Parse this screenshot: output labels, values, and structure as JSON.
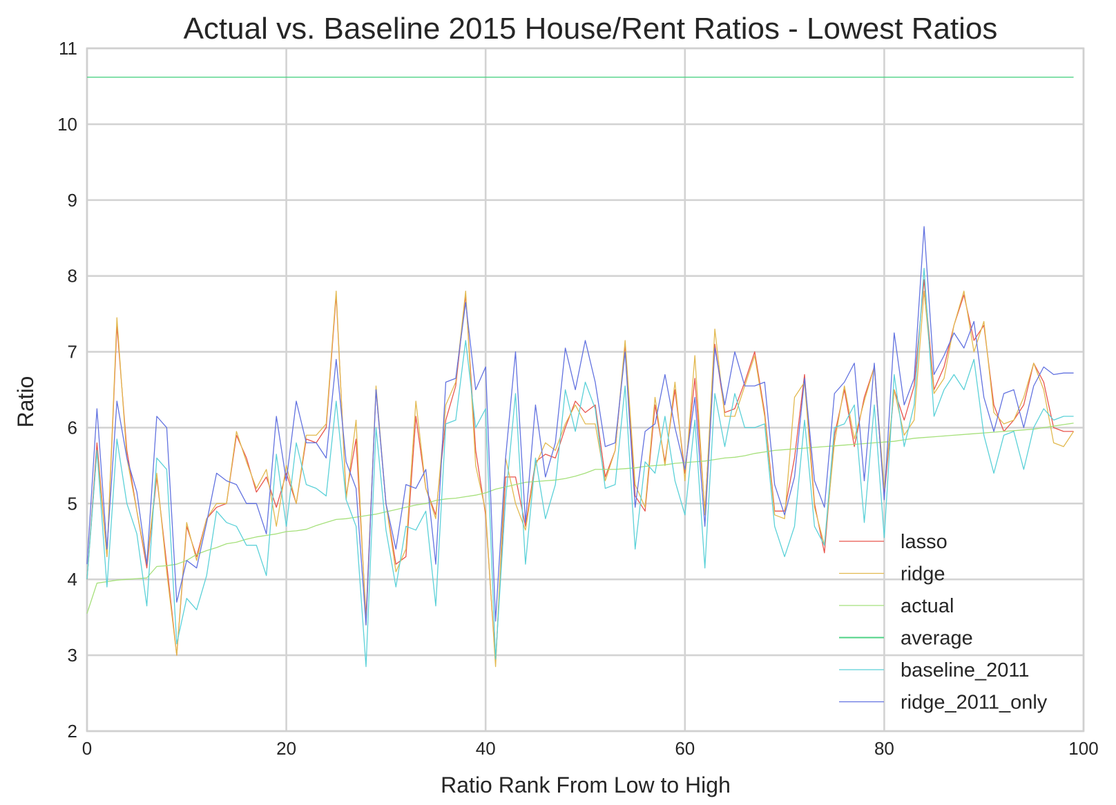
{
  "chart_data": {
    "type": "line",
    "title": "Actual vs. Baseline 2015 House/Rent Ratios - Lowest Ratios",
    "xlabel": "Ratio Rank From Low to High",
    "ylabel": "Ratio",
    "xlim": [
      0,
      100
    ],
    "ylim": [
      2,
      11
    ],
    "xticks": [
      "0",
      "20",
      "40",
      "60",
      "80",
      "100"
    ],
    "yticks": [
      "2",
      "3",
      "4",
      "5",
      "6",
      "7",
      "8",
      "9",
      "10",
      "11"
    ],
    "grid": true,
    "legend_position": "lower-right",
    "series": [
      {
        "name": "lasso",
        "color": "#e8544c",
        "x": [
          0,
          1,
          2,
          3,
          4,
          5,
          6,
          7,
          8,
          9,
          10,
          11,
          12,
          13,
          14,
          15,
          16,
          17,
          18,
          19,
          20,
          21,
          22,
          23,
          24,
          25,
          26,
          27,
          28,
          29,
          30,
          31,
          32,
          33,
          34,
          35,
          36,
          37,
          38,
          39,
          40,
          41,
          42,
          43,
          44,
          45,
          46,
          47,
          48,
          49,
          50,
          51,
          52,
          53,
          54,
          55,
          56,
          57,
          58,
          59,
          60,
          61,
          62,
          63,
          64,
          65,
          66,
          67,
          68,
          69,
          70,
          71,
          72,
          73,
          74,
          75,
          76,
          77,
          78,
          79,
          80,
          81,
          82,
          83,
          84,
          85,
          86,
          87,
          88,
          89,
          90,
          91,
          92,
          93,
          94,
          95,
          96,
          97,
          98,
          99
        ],
        "values": [
          4.0,
          5.8,
          4.3,
          7.35,
          5.7,
          4.9,
          4.15,
          5.35,
          4.2,
          3.0,
          4.7,
          4.3,
          4.8,
          4.95,
          5.0,
          5.9,
          5.6,
          5.15,
          5.35,
          4.95,
          5.4,
          5.0,
          5.85,
          5.8,
          6.0,
          7.75,
          5.1,
          5.85,
          3.5,
          6.5,
          5.0,
          4.2,
          4.3,
          6.15,
          5.2,
          4.85,
          6.1,
          6.55,
          7.75,
          5.7,
          4.85,
          2.9,
          5.35,
          5.35,
          4.7,
          5.55,
          5.65,
          5.6,
          6.0,
          6.35,
          6.2,
          6.3,
          5.35,
          5.7,
          7.1,
          5.1,
          4.9,
          6.3,
          5.55,
          6.5,
          5.4,
          6.65,
          4.9,
          7.1,
          6.2,
          6.25,
          6.6,
          7.0,
          6.2,
          4.9,
          4.9,
          5.6,
          6.7,
          5.0,
          4.35,
          5.9,
          6.5,
          5.75,
          6.4,
          6.8,
          5.1,
          6.5,
          6.1,
          6.55,
          7.95,
          6.5,
          6.8,
          7.35,
          7.75,
          7.15,
          7.35,
          6.3,
          5.95,
          6.1,
          6.3,
          6.85,
          6.6,
          6.0,
          5.95,
          5.95
        ]
      },
      {
        "name": "ridge",
        "color": "#e2b94f",
        "x": [
          0,
          1,
          2,
          3,
          4,
          5,
          6,
          7,
          8,
          9,
          10,
          11,
          12,
          13,
          14,
          15,
          16,
          17,
          18,
          19,
          20,
          21,
          22,
          23,
          24,
          25,
          26,
          27,
          28,
          29,
          30,
          31,
          32,
          33,
          34,
          35,
          36,
          37,
          38,
          39,
          40,
          41,
          42,
          43,
          44,
          45,
          46,
          47,
          48,
          49,
          50,
          51,
          52,
          53,
          54,
          55,
          56,
          57,
          58,
          59,
          60,
          61,
          62,
          63,
          64,
          65,
          66,
          67,
          68,
          69,
          70,
          71,
          72,
          73,
          74,
          75,
          76,
          77,
          78,
          79,
          80,
          81,
          82,
          83,
          84,
          85,
          86,
          87,
          88,
          89,
          90,
          91,
          92,
          93,
          94,
          95,
          96,
          97,
          98,
          99
        ],
        "values": [
          4.0,
          5.7,
          4.3,
          7.45,
          5.6,
          4.9,
          4.2,
          5.4,
          4.1,
          3.0,
          4.75,
          4.25,
          4.8,
          5.0,
          5.0,
          5.95,
          5.55,
          5.2,
          5.45,
          4.7,
          5.5,
          5.0,
          5.9,
          5.9,
          6.05,
          7.8,
          5.05,
          6.1,
          3.4,
          6.55,
          5.0,
          4.1,
          4.4,
          6.35,
          5.2,
          4.8,
          6.3,
          6.6,
          7.8,
          5.5,
          4.9,
          2.85,
          5.6,
          5.0,
          4.65,
          5.5,
          5.8,
          5.7,
          6.05,
          6.3,
          6.05,
          6.05,
          5.3,
          5.7,
          7.15,
          5.25,
          4.95,
          6.4,
          5.5,
          6.6,
          5.3,
          6.95,
          4.85,
          7.3,
          6.15,
          6.15,
          6.55,
          6.95,
          6.15,
          4.85,
          4.8,
          6.4,
          6.6,
          4.95,
          4.45,
          5.8,
          6.55,
          5.85,
          6.35,
          6.8,
          5.2,
          6.5,
          5.9,
          6.1,
          7.8,
          6.45,
          6.65,
          7.35,
          7.8,
          7.0,
          7.4,
          6.2,
          6.05,
          6.1,
          6.4,
          6.85,
          6.5,
          5.8,
          5.75,
          5.95
        ]
      },
      {
        "name": "actual",
        "color": "#a5e07a",
        "x": [
          0,
          1,
          2,
          3,
          4,
          5,
          6,
          7,
          8,
          9,
          10,
          11,
          12,
          13,
          14,
          15,
          16,
          17,
          18,
          19,
          20,
          21,
          22,
          23,
          24,
          25,
          26,
          27,
          28,
          29,
          30,
          31,
          32,
          33,
          34,
          35,
          36,
          37,
          38,
          39,
          40,
          41,
          42,
          43,
          44,
          45,
          46,
          47,
          48,
          49,
          50,
          51,
          52,
          53,
          54,
          55,
          56,
          57,
          58,
          59,
          60,
          61,
          62,
          63,
          64,
          65,
          66,
          67,
          68,
          69,
          70,
          71,
          72,
          73,
          74,
          75,
          76,
          77,
          78,
          79,
          80,
          81,
          82,
          83,
          84,
          85,
          86,
          87,
          88,
          89,
          90,
          91,
          92,
          93,
          94,
          95,
          96,
          97,
          98,
          99
        ],
        "values": [
          3.55,
          3.95,
          3.97,
          3.99,
          4.0,
          4.01,
          4.02,
          4.17,
          4.18,
          4.2,
          4.25,
          4.33,
          4.38,
          4.42,
          4.47,
          4.49,
          4.53,
          4.56,
          4.58,
          4.6,
          4.63,
          4.64,
          4.66,
          4.71,
          4.75,
          4.79,
          4.8,
          4.82,
          4.84,
          4.86,
          4.89,
          4.92,
          4.95,
          4.98,
          5.0,
          5.04,
          5.06,
          5.07,
          5.09,
          5.11,
          5.14,
          5.19,
          5.22,
          5.25,
          5.28,
          5.29,
          5.3,
          5.31,
          5.33,
          5.36,
          5.4,
          5.45,
          5.45,
          5.45,
          5.46,
          5.47,
          5.49,
          5.5,
          5.51,
          5.53,
          5.54,
          5.55,
          5.56,
          5.58,
          5.6,
          5.61,
          5.63,
          5.66,
          5.68,
          5.7,
          5.71,
          5.72,
          5.73,
          5.74,
          5.75,
          5.76,
          5.77,
          5.78,
          5.79,
          5.8,
          5.81,
          5.82,
          5.84,
          5.86,
          5.87,
          5.88,
          5.89,
          5.9,
          5.91,
          5.92,
          5.93,
          5.94,
          5.95,
          5.96,
          5.97,
          5.98,
          6.0,
          6.02,
          6.04,
          6.06
        ]
      },
      {
        "name": "average",
        "color": "#4ed284",
        "x": [
          0,
          99
        ],
        "values": [
          10.62,
          10.62
        ]
      },
      {
        "name": "baseline_2011",
        "color": "#5bd1d8",
        "x": [
          0,
          1,
          2,
          3,
          4,
          5,
          6,
          7,
          8,
          9,
          10,
          11,
          12,
          13,
          14,
          15,
          16,
          17,
          18,
          19,
          20,
          21,
          22,
          23,
          24,
          25,
          26,
          27,
          28,
          29,
          30,
          31,
          32,
          33,
          34,
          35,
          36,
          37,
          38,
          39,
          40,
          41,
          42,
          43,
          44,
          45,
          46,
          47,
          48,
          49,
          50,
          51,
          52,
          53,
          54,
          55,
          56,
          57,
          58,
          59,
          60,
          61,
          62,
          63,
          64,
          65,
          66,
          67,
          68,
          69,
          70,
          71,
          72,
          73,
          74,
          75,
          76,
          77,
          78,
          79,
          80,
          81,
          82,
          83,
          84,
          85,
          86,
          87,
          88,
          89,
          90,
          91,
          92,
          93,
          94,
          95,
          96,
          97,
          98,
          99
        ],
        "values": [
          4.0,
          5.7,
          3.9,
          5.85,
          5.0,
          4.6,
          3.65,
          5.6,
          5.45,
          3.15,
          3.75,
          3.6,
          4.05,
          4.9,
          4.75,
          4.7,
          4.45,
          4.45,
          4.05,
          5.65,
          4.7,
          5.8,
          5.25,
          5.2,
          5.1,
          6.35,
          5.05,
          4.7,
          2.85,
          6.0,
          4.65,
          3.9,
          4.7,
          4.65,
          4.9,
          3.65,
          6.05,
          6.1,
          7.15,
          6.0,
          6.25,
          2.95,
          5.05,
          6.45,
          4.2,
          5.6,
          4.8,
          5.25,
          6.5,
          5.95,
          6.6,
          6.25,
          5.2,
          5.25,
          6.55,
          4.4,
          5.55,
          5.4,
          6.15,
          5.3,
          4.85,
          6.1,
          4.15,
          6.45,
          5.75,
          6.45,
          6.0,
          6.0,
          6.05,
          4.7,
          4.3,
          4.7,
          6.1,
          4.7,
          4.45,
          6.0,
          6.05,
          6.3,
          4.75,
          6.3,
          4.55,
          6.7,
          5.75,
          6.3,
          8.1,
          6.15,
          6.5,
          6.7,
          6.5,
          6.9,
          5.9,
          5.4,
          5.9,
          5.95,
          5.45,
          6.0,
          6.25,
          6.1,
          6.15,
          6.15
        ]
      },
      {
        "name": "ridge_2011_only",
        "color": "#6272e0",
        "x": [
          0,
          1,
          2,
          3,
          4,
          5,
          6,
          7,
          8,
          9,
          10,
          11,
          12,
          13,
          14,
          15,
          16,
          17,
          18,
          19,
          20,
          21,
          22,
          23,
          24,
          25,
          26,
          27,
          28,
          29,
          30,
          31,
          32,
          33,
          34,
          35,
          36,
          37,
          38,
          39,
          40,
          41,
          42,
          43,
          44,
          45,
          46,
          47,
          48,
          49,
          50,
          51,
          52,
          53,
          54,
          55,
          56,
          57,
          58,
          59,
          60,
          61,
          62,
          63,
          64,
          65,
          66,
          67,
          68,
          69,
          70,
          71,
          72,
          73,
          74,
          75,
          76,
          77,
          78,
          79,
          80,
          81,
          82,
          83,
          84,
          85,
          86,
          87,
          88,
          89,
          90,
          91,
          92,
          93,
          94,
          95,
          96,
          97,
          98,
          99
        ],
        "values": [
          4.2,
          6.25,
          4.4,
          6.35,
          5.6,
          5.15,
          4.2,
          6.15,
          6.0,
          3.7,
          4.25,
          4.15,
          4.75,
          5.4,
          5.3,
          5.25,
          5.0,
          5.0,
          4.6,
          6.15,
          5.3,
          6.35,
          5.8,
          5.8,
          5.6,
          6.9,
          5.55,
          5.2,
          3.4,
          6.5,
          5.0,
          4.4,
          5.25,
          5.2,
          5.45,
          4.2,
          6.6,
          6.65,
          7.65,
          6.5,
          6.8,
          3.45,
          5.6,
          7.0,
          4.75,
          6.3,
          5.35,
          5.8,
          7.05,
          6.5,
          7.15,
          6.6,
          5.75,
          5.8,
          7.0,
          4.95,
          5.95,
          6.05,
          6.7,
          6.0,
          5.45,
          6.4,
          4.7,
          7.05,
          6.3,
          7.0,
          6.55,
          6.55,
          6.6,
          5.25,
          4.85,
          5.35,
          6.65,
          5.3,
          4.95,
          6.45,
          6.6,
          6.85,
          5.3,
          6.85,
          5.05,
          7.25,
          6.3,
          6.65,
          8.65,
          6.7,
          6.95,
          7.25,
          7.05,
          7.4,
          6.4,
          5.95,
          6.45,
          6.5,
          6.0,
          6.55,
          6.8,
          6.7,
          6.72,
          6.72
        ]
      }
    ]
  }
}
